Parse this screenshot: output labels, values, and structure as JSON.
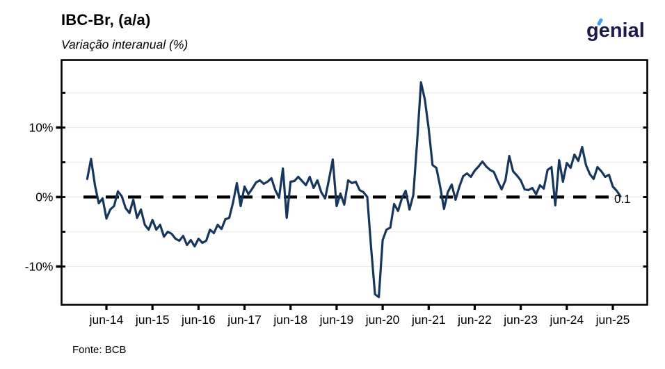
{
  "header": {
    "logo": {
      "text": "genial",
      "color": "#1b1a4b",
      "accent_color": "#3f9ff7"
    }
  },
  "footer": {
    "source": "Fonte: BCB"
  },
  "chart_data": {
    "type": "line",
    "title": "IBC-Br, (a/a)",
    "subtitle": "Variação interanual (%)",
    "series_name": "IBC-Br variação interanual (%)",
    "frequency": "monthly",
    "x_start": "2014-01",
    "x_end": "2025-08",
    "values": [
      2.6,
      5.5,
      1.7,
      -0.9,
      -0.2,
      -3.1,
      -1.8,
      -1.3,
      0.8,
      0.1,
      -1.6,
      -2.3,
      -0.4,
      -3.0,
      -1.8,
      -4.0,
      -4.7,
      -3.3,
      -4.7,
      -4.0,
      -5.7,
      -5.0,
      -5.3,
      -6.0,
      -6.3,
      -5.6,
      -6.9,
      -6.2,
      -7.1,
      -6.0,
      -6.6,
      -6.3,
      -4.7,
      -5.2,
      -4.0,
      -4.6,
      -3.2,
      -3.0,
      -0.8,
      2.0,
      -1.3,
      1.5,
      0.4,
      1.2,
      2.1,
      2.4,
      1.9,
      2.2,
      2.7,
      1.0,
      -0.1,
      4.1,
      -3.0,
      2.2,
      2.3,
      2.9,
      2.3,
      1.7,
      2.9,
      1.3,
      2.4,
      0.7,
      -0.2,
      2.5,
      5.4,
      -1.3,
      0.5,
      -1.1,
      2.4,
      2.0,
      2.2,
      1.0,
      0.7,
      0.0,
      -7.3,
      -14.0,
      -14.4,
      -6.2,
      -4.7,
      -4.4,
      -1.0,
      -2.0,
      -0.2,
      0.9,
      -1.8,
      0.3,
      8.0,
      16.5,
      14.0,
      9.8,
      4.6,
      4.2,
      1.5,
      -1.7,
      0.7,
      1.8,
      -0.4,
      1.5,
      3.0,
      3.4,
      2.9,
      3.8,
      4.4,
      5.1,
      4.4,
      3.9,
      3.6,
      2.3,
      1.1,
      2.4,
      5.9,
      3.7,
      3.1,
      2.4,
      1.1,
      1.0,
      1.3,
      0.4,
      1.7,
      1.2,
      3.9,
      4.3,
      -1.2,
      5.3,
      2.2,
      4.9,
      4.2,
      6.1,
      5.2,
      7.2,
      4.6,
      3.3,
      2.6,
      4.3,
      3.7,
      2.9,
      3.2,
      1.5,
      0.9,
      0.1
    ],
    "x_tick_labels": [
      "jun-14",
      "jun-15",
      "jun-16",
      "jun-17",
      "jun-18",
      "jun-19",
      "jun-20",
      "jun-21",
      "jun-22",
      "jun-23",
      "jun-24",
      "jun-25"
    ],
    "y_ticks": [
      {
        "value": 10,
        "label": "10%"
      },
      {
        "value": 0,
        "label": "0%"
      },
      {
        "value": -10,
        "label": "-10%"
      }
    ],
    "y_grid_pct": [
      15,
      10,
      5,
      0,
      -5,
      -10
    ],
    "ylim": [
      -15.5,
      19.5
    ],
    "grid": true,
    "legend": "none",
    "zero_line": {
      "value": 0,
      "style": "dashed"
    },
    "last_value_label": "0.1",
    "colors": {
      "line": "#17365d",
      "zero_line": "#000000",
      "grid": "#ececec",
      "frame": "#000000"
    }
  }
}
